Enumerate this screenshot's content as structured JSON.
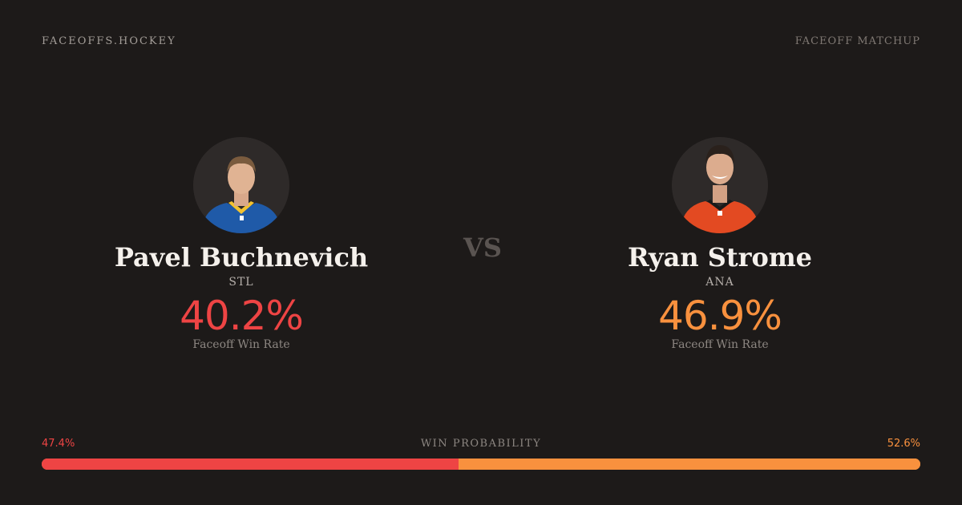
{
  "header": {
    "brand": "FACEOFFS.HOCKEY",
    "label": "FACEOFF MATCHUP"
  },
  "vs": "VS",
  "players": [
    {
      "name": "Pavel Buchnevich",
      "team": "STL",
      "win_rate": "40.2%",
      "win_rate_label": "Faceoff Win Rate",
      "color": "#ee4444",
      "jersey_color": "#1f5aa8"
    },
    {
      "name": "Ryan Strome",
      "team": "ANA",
      "win_rate": "46.9%",
      "win_rate_label": "Faceoff Win Rate",
      "color": "#f9913e",
      "jersey_color": "#e34a22"
    }
  ],
  "win_probability": {
    "title": "WIN PROBABILITY",
    "left_label": "47.4%",
    "right_label": "52.6%",
    "left_fraction": 0.474,
    "left_color": "#ee4444",
    "right_color": "#f9913e"
  }
}
